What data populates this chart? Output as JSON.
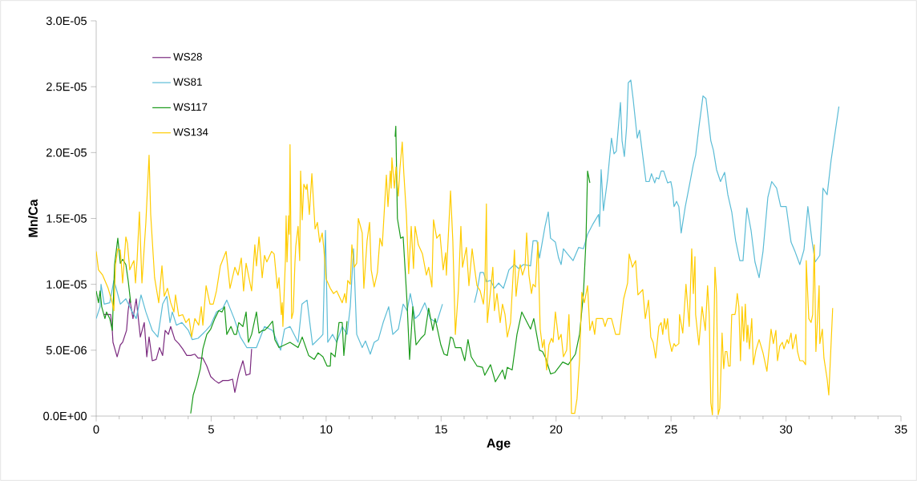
{
  "chart_data": {
    "type": "line",
    "xlabel": "Age",
    "ylabel": "Mn/Ca",
    "xlim": [
      0,
      35
    ],
    "xticks": [
      0,
      5,
      10,
      15,
      20,
      25,
      30,
      35
    ],
    "ylim": [
      0,
      3e-05
    ],
    "yticks": [
      {
        "value": 0,
        "label": "0.0E+00"
      },
      {
        "value": 5e-06,
        "label": "5.0E-06"
      },
      {
        "value": 1e-05,
        "label": "1.0E-05"
      },
      {
        "value": 1.5e-05,
        "label": "1.5E-05"
      },
      {
        "value": 2e-05,
        "label": "2.0E-05"
      },
      {
        "value": 2.5e-05,
        "label": "2.5E-05"
      },
      {
        "value": 3e-05,
        "label": "3.0E-05"
      }
    ],
    "grid": false,
    "legend": "top left",
    "marker": "none",
    "series": [
      {
        "name": "WS28",
        "color": "#7b2a7f",
        "x": [
          0.35,
          0.63,
          0.7,
          0.73,
          0.91,
          1.05,
          1.15,
          1.32,
          1.39,
          1.46,
          1.6,
          1.74,
          1.92,
          2.09,
          2.2,
          2.3,
          2.44,
          2.61,
          2.75,
          2.89,
          3.0,
          3.14,
          3.24,
          3.42,
          3.59,
          3.76,
          3.94,
          4.11,
          4.29,
          4.43,
          4.64,
          4.81,
          4.98,
          5.16,
          5.33,
          5.51,
          5.75,
          5.93,
          6.03,
          6.2,
          6.38,
          6.52,
          6.69,
          6.76
        ],
        "values": [
          7.7e-06,
          7.7e-06,
          6.5e-06,
          5.6e-06,
          4.5e-06,
          5.4e-06,
          5.6e-06,
          6.5e-06,
          8e-06,
          8.9e-06,
          7.4e-06,
          8.9e-06,
          6e-06,
          7.1e-06,
          4.5e-06,
          6e-06,
          4.2e-06,
          4.3e-06,
          5.2e-06,
          4.6e-06,
          6.5e-06,
          6.2e-06,
          6.8e-06,
          5.8e-06,
          5.5e-06,
          5.1e-06,
          4.6e-06,
          4.6e-06,
          4.7e-06,
          4.4e-06,
          4.4e-06,
          3.8e-06,
          3e-06,
          2.7e-06,
          2.5e-06,
          2.7e-06,
          2.7e-06,
          2.8e-06,
          1.8e-06,
          3.2e-06,
          4.2e-06,
          3.1e-06,
          3.2e-06,
          5.1e-06
        ]
      },
      {
        "name": "WS81",
        "color": "#5bbcd6",
        "x": [
          0,
          0.17,
          0.21,
          0.35,
          0.59,
          0.77,
          0.87,
          1.05,
          1.29,
          1.57,
          1.74,
          1.95,
          2.16,
          2.44,
          2.68,
          2.89,
          3.07,
          3.21,
          3.31,
          3.49,
          3.73,
          4.01,
          4.18,
          4.43,
          4.78,
          4.98,
          5.23,
          5.51,
          5.68,
          6.0,
          6.27,
          6.55,
          6.97,
          7.32,
          7.67,
          8.02,
          8.19,
          8.43,
          8.78,
          8.95,
          9.17,
          9.41,
          9.76,
          9.86,
          9.97,
          10.07,
          10.28,
          10.46,
          10.7,
          10.91,
          11.05,
          11.19,
          11.33,
          11.57,
          11.71,
          11.92,
          12.09,
          12.27,
          12.48,
          12.72,
          12.9,
          13.14,
          13.35,
          13.52,
          13.66,
          13.87,
          14.05,
          14.29,
          14.53,
          14.81,
          15.06,
          15.8,
          16.45,
          16.56,
          16.7,
          16.84,
          16.97,
          17.15,
          17.32,
          17.5,
          17.71,
          17.85,
          17.95,
          18.19,
          18.37,
          18.58,
          18.89,
          19.0,
          19.17,
          19.28,
          19.52,
          19.66,
          19.76,
          19.97,
          20.11,
          20.22,
          20.32,
          20.5,
          20.74,
          20.98,
          21.19,
          21.37,
          21.61,
          21.85,
          21.89,
          21.96,
          22.06,
          22.24,
          22.41,
          22.52,
          22.62,
          22.8,
          22.87,
          22.97,
          23.07,
          23.14,
          23.25,
          23.35,
          23.53,
          23.63,
          23.91,
          24.05,
          24.15,
          24.29,
          24.36,
          24.47,
          24.57,
          24.68,
          24.85,
          24.99,
          25.06,
          25.13,
          25.24,
          25.34,
          25.44,
          25.62,
          25.72,
          25.83,
          25.97,
          26.07,
          26.21,
          26.39,
          26.52,
          26.73,
          26.84,
          26.98,
          27.15,
          27.33,
          27.47,
          27.64,
          27.81,
          27.99,
          28.13,
          28.3,
          28.48,
          28.65,
          28.83,
          29.0,
          29.21,
          29.38,
          29.59,
          29.77,
          30.01,
          30.22,
          30.39,
          30.6,
          30.78,
          30.95,
          31.13,
          31.27,
          31.47,
          31.61,
          31.79,
          31.96,
          32.3
        ],
        "values": [
          7.4e-06,
          8.3e-06,
          1e-05,
          8.5e-06,
          8.6e-06,
          1.03e-05,
          9.7e-06,
          8.5e-06,
          8.9e-06,
          7.9e-06,
          7.4e-06,
          9.2e-06,
          7.9e-06,
          6.5e-06,
          6e-06,
          8.5e-06,
          9.1e-06,
          7.1e-06,
          7.9e-06,
          6.9e-06,
          7.1e-06,
          6.5e-06,
          5.8e-06,
          5.9e-06,
          6.5e-06,
          6.9e-06,
          7.9e-06,
          8.2e-06,
          8.8e-06,
          7.4e-06,
          6e-06,
          5.2e-06,
          5.2e-06,
          6.8e-06,
          6.5e-06,
          5e-06,
          6.6e-06,
          6.8e-06,
          5.6e-06,
          8.5e-06,
          8.8e-06,
          5.4e-06,
          6e-06,
          6.2e-06,
          1.41e-05,
          5.6e-06,
          6.2e-06,
          5.6e-06,
          6.8e-06,
          6.2e-06,
          8.3e-06,
          1.27e-05,
          6.2e-06,
          5.2e-06,
          5.7e-06,
          4.7e-06,
          5.6e-06,
          5.8e-06,
          7.1e-06,
          8.3e-06,
          6.2e-06,
          6.6e-06,
          8.5e-06,
          8e-06,
          9.3e-06,
          7.4e-06,
          7.7e-06,
          8.6e-06,
          7.4e-06,
          7.1e-06,
          8.5e-06,
          null,
          8.6e-06,
          9.4e-06,
          1.09e-05,
          1.09e-05,
          1.02e-05,
          1.03e-05,
          9.7e-06,
          1.01e-05,
          9.7e-06,
          1.05e-05,
          1.11e-05,
          1.15e-05,
          1.12e-05,
          1.15e-05,
          1.14e-05,
          1.33e-05,
          1.33e-05,
          1.2e-05,
          1.44e-05,
          1.55e-05,
          1.35e-05,
          1.32e-05,
          1.2e-05,
          1.15e-05,
          1.27e-05,
          1.23e-05,
          1.18e-05,
          1.28e-05,
          1.27e-05,
          1.38e-05,
          1.46e-05,
          1.53e-05,
          1.44e-05,
          1.87e-05,
          1.56e-05,
          1.8e-05,
          2.11e-05,
          1.99e-05,
          2.01e-05,
          2.38e-05,
          2.09e-05,
          1.97e-05,
          2.2e-05,
          2.53e-05,
          2.55e-05,
          2.41e-05,
          2.11e-05,
          2.17e-05,
          1.78e-05,
          1.78e-05,
          1.84e-05,
          1.77e-05,
          1.81e-05,
          1.8e-05,
          1.86e-05,
          1.86e-05,
          1.77e-05,
          1.78e-05,
          1.72e-05,
          1.59e-05,
          1.63e-05,
          1.59e-05,
          1.39e-05,
          1.59e-05,
          1.68e-05,
          1.78e-05,
          1.91e-05,
          1.98e-05,
          2.19e-05,
          2.43e-05,
          2.41e-05,
          2.09e-05,
          2.02e-05,
          1.87e-05,
          1.78e-05,
          1.85e-05,
          1.68e-05,
          1.55e-05,
          1.33e-05,
          1.18e-05,
          1.18e-05,
          1.58e-05,
          1.41e-05,
          1.17e-05,
          1.05e-05,
          1.25e-05,
          1.66e-05,
          1.78e-05,
          1.73e-05,
          1.59e-05,
          1.59e-05,
          1.32e-05,
          1.25e-05,
          1.15e-05,
          1.26e-05,
          1.59e-05,
          1.33e-05,
          1.17e-05,
          1.22e-05,
          1.73e-05,
          1.68e-05,
          1.94e-05,
          2.35e-05
        ]
      },
      {
        "name": "WS117",
        "color": "#1a9a1a",
        "x": [
          0,
          0.1,
          0.17,
          0.24,
          0.38,
          0.45,
          0.59,
          0.7,
          0.8,
          0.94,
          1.05,
          1.15,
          1.29,
          1.39,
          1.5,
          2.8,
          4.11,
          4.22,
          4.36,
          4.53,
          4.64,
          4.81,
          4.98,
          5.16,
          5.33,
          5.47,
          5.58,
          5.68,
          5.86,
          6.0,
          6.1,
          6.2,
          6.38,
          6.52,
          6.62,
          6.76,
          6.97,
          7.08,
          7.22,
          7.32,
          7.49,
          7.67,
          7.77,
          7.95,
          8.43,
          8.78,
          8.96,
          9.24,
          9.48,
          9.65,
          9.86,
          10.04,
          10.18,
          10.21,
          10.39,
          10.56,
          10.7,
          10.77,
          10.91,
          12.0,
          13.0,
          13.03,
          13.1,
          13.24,
          13.35,
          13.45,
          13.52,
          13.63,
          13.77,
          13.91,
          14.12,
          14.29,
          14.46,
          14.64,
          14.74,
          14.99,
          15.13,
          15.27,
          15.41,
          15.51,
          15.62,
          15.86,
          16.03,
          16.17,
          16.31,
          16.56,
          16.8,
          16.9,
          17.15,
          17.36,
          17.67,
          17.78,
          17.88,
          18.09,
          18.3,
          18.51,
          18.89,
          19.03,
          19.28,
          19.41,
          19.55,
          19.76,
          19.94,
          20.29,
          20.53,
          20.84,
          21.02,
          21.19,
          21.3,
          21.37,
          21.47
        ],
        "values": [
          9.5e-06,
          8.6e-06,
          9.5e-06,
          8.3e-06,
          7.4e-06,
          7.9e-06,
          7.4e-06,
          6.5e-06,
          1.15e-05,
          1.35e-05,
          1.16e-05,
          1.19e-05,
          1.15e-05,
          1.03e-05,
          8.6e-06,
          null,
          2e-07,
          1.6e-06,
          2.4e-06,
          3.6e-06,
          5.1e-06,
          6.2e-06,
          6.6e-06,
          7.4e-06,
          8e-06,
          7.9e-06,
          8.3e-06,
          6.2e-06,
          6.8e-06,
          6.2e-06,
          6.2e-06,
          7.1e-06,
          6.8e-06,
          7.9e-06,
          5.6e-06,
          6.2e-06,
          7.9e-06,
          6.3e-06,
          6.5e-06,
          6.5e-06,
          6.8e-06,
          7.2e-06,
          5.8e-06,
          5.2e-06,
          5.6e-06,
          5.2e-06,
          6e-06,
          4.6e-06,
          4.3e-06,
          4.8e-06,
          4.5e-06,
          3.8e-06,
          3.8e-06,
          4.8e-06,
          4.5e-06,
          7.1e-06,
          7.1e-06,
          4.6e-06,
          7.2e-06,
          null,
          2.12e-05,
          2.2e-05,
          1.5e-05,
          1.35e-05,
          1.36e-05,
          1.07e-05,
          8.6e-06,
          4.3e-06,
          8.3e-06,
          5.4e-06,
          5.9e-06,
          6.2e-06,
          8.2e-06,
          6.5e-06,
          7.4e-06,
          5.4e-06,
          4.7e-06,
          4.6e-06,
          6e-06,
          5.9e-06,
          5.2e-06,
          5.2e-06,
          4.2e-06,
          5.8e-06,
          4.5e-06,
          3.8e-06,
          3.7e-06,
          3.1e-06,
          3.9e-06,
          2.6e-06,
          3.5e-06,
          2.8e-06,
          3.7e-06,
          3.5e-06,
          6.2e-06,
          7.9e-06,
          6.6e-06,
          7.4e-06,
          5e-06,
          4.9e-06,
          4.4e-06,
          3.2e-06,
          3.3e-06,
          4.1e-06,
          3.9e-06,
          4.7e-06,
          6.2e-06,
          9.3e-06,
          1.33e-05,
          1.86e-05,
          1.77e-05
        ]
      },
      {
        "name": "WS134",
        "color": "#ffcc00",
        "x": [
          0,
          0.1,
          0.28,
          0.52,
          0.7,
          0.77,
          0.84,
          0.94,
          1.05,
          1.15,
          1.29,
          1.36,
          1.46,
          1.53,
          1.64,
          1.71,
          1.78,
          1.88,
          1.99,
          2.16,
          2.3,
          2.37,
          2.54,
          2.72,
          2.86,
          2.96,
          3.1,
          3.24,
          3.38,
          3.45,
          3.59,
          3.76,
          3.9,
          4.04,
          4.15,
          4.29,
          4.46,
          4.57,
          4.64,
          4.78,
          4.95,
          5.09,
          5.23,
          5.4,
          5.65,
          5.82,
          6.03,
          6.17,
          6.31,
          6.41,
          6.52,
          6.69,
          6.76,
          6.9,
          6.97,
          7.08,
          7.22,
          7.32,
          7.42,
          7.63,
          7.74,
          7.88,
          7.95,
          8.05,
          8.09,
          8.12,
          8.23,
          8.26,
          8.3,
          8.37,
          8.4,
          8.43,
          8.5,
          8.57,
          8.64,
          8.68,
          8.78,
          8.85,
          8.89,
          8.96,
          9.03,
          9.13,
          9.17,
          9.27,
          9.38,
          9.52,
          9.62,
          9.72,
          9.83,
          9.9,
          10.0,
          10.18,
          10.32,
          10.46,
          10.7,
          10.81,
          10.87,
          10.94,
          11.05,
          11.12,
          11.22,
          11.33,
          11.4,
          11.57,
          11.64,
          11.78,
          11.89,
          11.96,
          12.09,
          12.23,
          12.34,
          12.44,
          12.48,
          12.62,
          12.69,
          12.79,
          12.83,
          12.86,
          12.97,
          13.04,
          13.14,
          13.21,
          13.31,
          13.38,
          13.49,
          13.59,
          13.7,
          13.8,
          13.87,
          14.01,
          14.19,
          14.36,
          14.46,
          14.6,
          14.67,
          14.81,
          14.95,
          15.09,
          15.2,
          15.23,
          15.41,
          15.51,
          15.62,
          15.75,
          15.86,
          15.93,
          16.1,
          16.21,
          16.35,
          16.45,
          16.56,
          16.7,
          16.84,
          16.9,
          16.97,
          17.01,
          17.15,
          17.25,
          17.32,
          17.43,
          17.57,
          17.67,
          17.78,
          17.88,
          18.02,
          18.19,
          18.26,
          18.37,
          18.44,
          18.54,
          18.65,
          18.72,
          18.82,
          18.93,
          19.0,
          19.1,
          19.21,
          19.31,
          19.41,
          19.48,
          19.59,
          19.69,
          19.8,
          19.87,
          19.97,
          20.11,
          20.22,
          20.32,
          20.46,
          20.56,
          20.63,
          20.67,
          20.81,
          20.91,
          21.02,
          21.12,
          21.23,
          21.37,
          21.47,
          21.58,
          21.68,
          21.75,
          21.89,
          22.03,
          22.13,
          22.24,
          22.41,
          22.59,
          22.76,
          22.94,
          23.11,
          23.18,
          23.32,
          23.46,
          23.56,
          23.77,
          23.88,
          24.02,
          24.12,
          24.22,
          24.33,
          24.47,
          24.57,
          24.64,
          24.71,
          24.78,
          24.85,
          24.92,
          25.03,
          25.13,
          25.2,
          25.34,
          25.37,
          25.51,
          25.65,
          25.79,
          25.9,
          25.97,
          26.04,
          26.07,
          26.21,
          26.35,
          26.49,
          26.59,
          26.66,
          26.73,
          26.8,
          26.91,
          26.98,
          27.05,
          27.12,
          27.22,
          27.29,
          27.36,
          27.43,
          27.5,
          27.57,
          27.64,
          27.78,
          27.81,
          27.88,
          27.95,
          28.02,
          28.09,
          28.16,
          28.23,
          28.3,
          28.34,
          28.41,
          28.51,
          28.58,
          28.69,
          28.83,
          29.0,
          29.17,
          29.35,
          29.45,
          29.56,
          29.63,
          29.73,
          29.84,
          29.91,
          30.05,
          30.11,
          30.22,
          30.29,
          30.43,
          30.5,
          30.6,
          30.74,
          30.85,
          30.88,
          30.99,
          31.09,
          31.16,
          31.23,
          31.3,
          31.44,
          31.47,
          31.58,
          31.65,
          31.79,
          31.86,
          32.03
        ],
        "values": [
          1.25e-05,
          1.11e-05,
          1.07e-05,
          9.7e-06,
          8.6e-06,
          8e-06,
          1.15e-05,
          1.27e-05,
          1.26e-05,
          1.01e-05,
          1.36e-05,
          1.31e-05,
          1.11e-05,
          1.14e-05,
          1.18e-05,
          1.01e-05,
          1.19e-05,
          1.55e-05,
          1.01e-05,
          1.47e-05,
          1.98e-05,
          1.53e-05,
          1.05e-05,
          8.6e-06,
          1.14e-05,
          9.1e-06,
          9.7e-06,
          8.6e-06,
          7.9e-06,
          9.2e-06,
          7.6e-06,
          7.7e-06,
          7.1e-06,
          7.4e-06,
          6e-06,
          7.4e-06,
          6.9e-06,
          8.3e-06,
          6.9e-06,
          9.9e-06,
          8.5e-06,
          8.5e-06,
          9.5e-06,
          1.14e-05,
          1.25e-05,
          9.7e-06,
          1.13e-05,
          1.07e-05,
          1.2e-05,
          9.5e-06,
          1.16e-05,
          1.01e-05,
          9.5e-06,
          1.3e-05,
          1.14e-05,
          1.36e-05,
          1.05e-05,
          1.22e-05,
          1.17e-05,
          1.25e-05,
          1.23e-05,
          9.7e-06,
          1.05e-05,
          7.7e-06,
          8.6e-06,
          6.8e-06,
          1.19e-05,
          1.52e-05,
          1.17e-05,
          1.52e-05,
          1.38e-05,
          2.06e-05,
          7.4e-06,
          7.9e-06,
          1.15e-05,
          1.29e-05,
          1.44e-05,
          1.18e-05,
          1.86e-05,
          1.49e-05,
          1.76e-05,
          1.72e-05,
          1.76e-05,
          1.53e-05,
          1.84e-05,
          1.42e-05,
          1.47e-05,
          1.32e-05,
          1.39e-05,
          1.27e-05,
          1.04e-05,
          9.7e-06,
          9.3e-06,
          9.5e-06,
          8.6e-06,
          9.3e-06,
          8.6e-06,
          1.03e-05,
          1e-05,
          1.3e-05,
          1.13e-05,
          1.16e-05,
          1.5e-05,
          1.39e-05,
          9.7e-06,
          1.33e-05,
          1.47e-05,
          1.11e-05,
          9.8e-06,
          1.09e-05,
          1.35e-05,
          1.29e-05,
          1.41e-05,
          1.83e-05,
          1.59e-05,
          1.86e-05,
          1.73e-05,
          1.96e-05,
          1.73e-05,
          1.89e-05,
          1.67e-05,
          1.88e-05,
          2.08e-05,
          1.84e-05,
          1.53e-05,
          1.08e-05,
          1.44e-05,
          1.12e-05,
          1.44e-05,
          1.3e-05,
          1.23e-05,
          1.07e-05,
          1.13e-05,
          9.8e-06,
          1.49e-05,
          1.35e-05,
          1.38e-05,
          1.11e-05,
          1.24e-05,
          1.07e-05,
          1.71e-05,
          1.33e-05,
          6.2e-06,
          9.5e-06,
          1.44e-05,
          1.13e-05,
          1.28e-05,
          9.9e-06,
          1.27e-05,
          1.13e-05,
          9.9e-06,
          9.5e-06,
          8.5e-06,
          9.7e-06,
          1.61e-05,
          7.1e-06,
          9.5e-06,
          1.13e-05,
          8e-06,
          9.3e-06,
          7.1e-06,
          8.5e-06,
          7.7e-06,
          6e-06,
          7.1e-06,
          1.26e-05,
          9.1e-06,
          1.09e-05,
          1.15e-05,
          1.07e-05,
          1.13e-05,
          1.39e-05,
          1.07e-05,
          9.3e-06,
          1e-05,
          9.8e-06,
          1.32e-05,
          6.6e-06,
          5.2e-06,
          5.8e-06,
          3.5e-06,
          5.4e-06,
          5.9e-06,
          5.6e-06,
          7.9e-06,
          5.8e-06,
          6.2e-06,
          4.5e-06,
          5e-06,
          7.7e-06,
          4.2e-06,
          2e-07,
          2e-07,
          1.3e-06,
          4.2e-06,
          9.4e-06,
          8.6e-06,
          9.9e-06,
          6.5e-06,
          7.2e-06,
          6.2e-06,
          7.4e-06,
          7.4e-06,
          7.4e-06,
          6.8e-06,
          7.4e-06,
          7.4e-06,
          6.2e-06,
          6.2e-06,
          8.9e-06,
          1.01e-05,
          1.23e-05,
          1.13e-05,
          1.18e-05,
          9.2e-06,
          9.6e-06,
          7.4e-06,
          8.8e-06,
          6e-06,
          5.6e-06,
          4.4e-06,
          6.8e-06,
          7.1e-06,
          6.2e-06,
          7.4e-06,
          6.6e-06,
          7.4e-06,
          5.8e-06,
          4.9e-06,
          5.5e-06,
          5.3e-06,
          5.5e-06,
          7.7e-06,
          6.3e-06,
          1e-05,
          6.8e-06,
          1.27e-05,
          9.3e-06,
          1.21e-05,
          7.7e-06,
          5.4e-06,
          8.3e-06,
          6.5e-06,
          9.9e-06,
          7.7e-06,
          1e-06,
          1e-07,
          1.13e-05,
          9.3e-06,
          1e-07,
          6e-07,
          6.3e-06,
          3.6e-06,
          4.9e-06,
          4.9e-06,
          3.8e-06,
          3.8e-06,
          7.7e-06,
          7.7e-06,
          8e-06,
          9.3e-06,
          8.3e-06,
          4.2e-06,
          8.3e-06,
          5.7e-06,
          8.5e-06,
          5.6e-06,
          6.9e-06,
          5.1e-06,
          7.4e-06,
          3.9e-06,
          5e-06,
          5.8e-06,
          4.8e-06,
          3.4e-06,
          6.6e-06,
          5.5e-06,
          6.5e-06,
          4.2e-06,
          5.3e-06,
          5.6e-06,
          5.1e-06,
          5.8e-06,
          5.5e-06,
          6.3e-06,
          5.1e-06,
          6.2e-06,
          4.9e-06,
          4.2e-06,
          4.2e-06,
          3.9e-06,
          1.18e-05,
          7.4e-06,
          7.1e-06,
          7.7e-06,
          1.3e-05,
          4.9e-06,
          9.9e-06,
          5.5e-06,
          6.6e-06,
          4.4e-06,
          2.8e-06,
          1.6e-06,
          8.2e-06
        ]
      }
    ]
  }
}
